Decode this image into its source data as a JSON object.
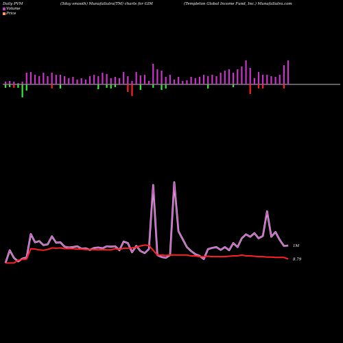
{
  "header": {
    "left": "Daily PVM",
    "center": "(5day smooth) MunafaSutra(TM) charts for GIM",
    "right": "(Templeton  Global Income  Fund, Inc.) MunafaSutra.com"
  },
  "legend": [
    {
      "label": "Volume",
      "color": "#cc33cc"
    },
    {
      "label": "Price",
      "color": "#ff9966"
    }
  ],
  "colors": {
    "background": "#000000",
    "volume_line": "#cc44cc",
    "volume_line_glow": "#ffffff",
    "price_line": "#ff2222",
    "bar_up": "#cc33cc",
    "bar_down_red": "#ff2222",
    "bar_down_green": "#33ee33",
    "baseline": "#ffffff"
  },
  "chart_data": {
    "type": "line",
    "n": 68,
    "pvm_bars": [
      {
        "up": 4,
        "down": 5,
        "color": "green"
      },
      {
        "up": 5,
        "down": 4,
        "color": "green"
      },
      {
        "up": 4,
        "down": 5,
        "color": "red"
      },
      {
        "up": 2,
        "down": 5,
        "color": "green"
      },
      {
        "up": 4,
        "down": 19,
        "color": "green"
      },
      {
        "up": 17,
        "down": 9,
        "color": "green"
      },
      {
        "up": 18,
        "down": 0,
        "color": "red"
      },
      {
        "up": 14,
        "down": 0,
        "color": "red"
      },
      {
        "up": 12,
        "down": 0,
        "color": "red"
      },
      {
        "up": 17,
        "down": 0,
        "color": "red"
      },
      {
        "up": 12,
        "down": 0,
        "color": "red"
      },
      {
        "up": 17,
        "down": 6,
        "color": "red"
      },
      {
        "up": 14,
        "down": 0,
        "color": "red"
      },
      {
        "up": 14,
        "down": 6,
        "color": "green"
      },
      {
        "up": 12,
        "down": 0,
        "color": "red"
      },
      {
        "up": 9,
        "down": 0,
        "color": "red"
      },
      {
        "up": 11,
        "down": 0,
        "color": "red"
      },
      {
        "up": 7,
        "down": 0,
        "color": "red"
      },
      {
        "up": 9,
        "down": 0,
        "color": "red"
      },
      {
        "up": 7,
        "down": 0,
        "color": "red"
      },
      {
        "up": 12,
        "down": 0,
        "color": "red"
      },
      {
        "up": 14,
        "down": 0,
        "color": "red"
      },
      {
        "up": 12,
        "down": 7,
        "color": "green"
      },
      {
        "up": 17,
        "down": 0,
        "color": "red"
      },
      {
        "up": 15,
        "down": 5,
        "color": "green"
      },
      {
        "up": 9,
        "down": 6,
        "color": "green"
      },
      {
        "up": 11,
        "down": 4,
        "color": "green"
      },
      {
        "up": 9,
        "down": 0,
        "color": "red"
      },
      {
        "up": 18,
        "down": 0,
        "color": "red"
      },
      {
        "up": 12,
        "down": 11,
        "color": "red"
      },
      {
        "up": 5,
        "down": 17,
        "color": "red"
      },
      {
        "up": 18,
        "down": 0,
        "color": "red"
      },
      {
        "up": 13,
        "down": 8,
        "color": "green"
      },
      {
        "up": 14,
        "down": 0,
        "color": "red"
      },
      {
        "up": 5,
        "down": 0,
        "color": "red"
      },
      {
        "up": 30,
        "down": 5,
        "color": "green"
      },
      {
        "up": 22,
        "down": 0,
        "color": "red"
      },
      {
        "up": 20,
        "down": 8,
        "color": "green"
      },
      {
        "up": 11,
        "down": 6,
        "color": "green"
      },
      {
        "up": 14,
        "down": 0,
        "color": "red"
      },
      {
        "up": 7,
        "down": 0,
        "color": "red"
      },
      {
        "up": 11,
        "down": 0,
        "color": "red"
      },
      {
        "up": 5,
        "down": 0,
        "color": "red"
      },
      {
        "up": 6,
        "down": 0,
        "color": "red"
      },
      {
        "up": 11,
        "down": 0,
        "color": "red"
      },
      {
        "up": 9,
        "down": 0,
        "color": "red"
      },
      {
        "up": 11,
        "down": 0,
        "color": "red"
      },
      {
        "up": 14,
        "down": 0,
        "color": "red"
      },
      {
        "up": 12,
        "down": 6,
        "color": "green"
      },
      {
        "up": 14,
        "down": 0,
        "color": "red"
      },
      {
        "up": 12,
        "down": 0,
        "color": "red"
      },
      {
        "up": 17,
        "down": 0,
        "color": "red"
      },
      {
        "up": 20,
        "down": 0,
        "color": "red"
      },
      {
        "up": 22,
        "down": 0,
        "color": "red"
      },
      {
        "up": 17,
        "down": 4,
        "color": "green"
      },
      {
        "up": 22,
        "down": 0,
        "color": "red"
      },
      {
        "up": 26,
        "down": 0,
        "color": "red"
      },
      {
        "up": 35,
        "down": 0,
        "color": "red"
      },
      {
        "up": 24,
        "down": 14,
        "color": "red"
      },
      {
        "up": 9,
        "down": 0,
        "color": "red"
      },
      {
        "up": 18,
        "down": 6,
        "color": "red"
      },
      {
        "up": 14,
        "down": 6,
        "color": "red"
      },
      {
        "up": 14,
        "down": 0,
        "color": "red"
      },
      {
        "up": 12,
        "down": 0,
        "color": "red"
      },
      {
        "up": 11,
        "down": 0,
        "color": "red"
      },
      {
        "up": 14,
        "down": 0,
        "color": "red"
      },
      {
        "up": 28,
        "down": 6,
        "color": "red"
      },
      {
        "up": 35,
        "down": 0,
        "color": "red"
      }
    ],
    "series": [
      {
        "name": "Volume",
        "values": [
          20,
          52,
          33,
          24,
          31,
          34,
          93,
          72,
          75,
          65,
          67,
          87,
          71,
          72,
          61,
          59,
          60,
          62,
          56,
          57,
          53,
          58,
          59,
          57,
          62,
          61,
          62,
          52,
          74,
          70,
          47,
          63,
          50,
          45,
          55,
          216,
          40,
          35,
          33,
          40,
          223,
          100,
          80,
          60,
          50,
          42,
          38,
          30,
          55,
          58,
          60,
          53,
          60,
          52,
          70,
          60,
          82,
          92,
          86,
          95,
          82,
          88,
          150,
          86,
          98,
          78,
          63,
          64
        ]
      },
      {
        "name": "Price",
        "values": [
          20,
          20,
          20,
          27,
          29,
          30,
          56,
          55,
          53,
          52,
          54,
          58,
          57,
          58,
          56,
          56,
          56,
          55,
          55,
          54,
          54,
          54,
          53,
          54,
          53,
          53,
          56,
          54,
          57,
          57,
          58,
          60,
          63,
          65,
          64,
          52,
          40,
          40,
          39,
          40,
          40,
          40,
          40,
          40,
          38,
          38,
          36,
          36,
          37,
          36,
          36,
          36,
          36,
          37,
          38,
          38,
          40,
          38,
          38,
          37,
          36,
          36,
          35,
          35,
          34,
          34,
          34,
          30
        ]
      }
    ],
    "annotations": [
      {
        "text": "1M",
        "series": "Volume"
      },
      {
        "text": "8.79",
        "series": "Price"
      }
    ]
  }
}
